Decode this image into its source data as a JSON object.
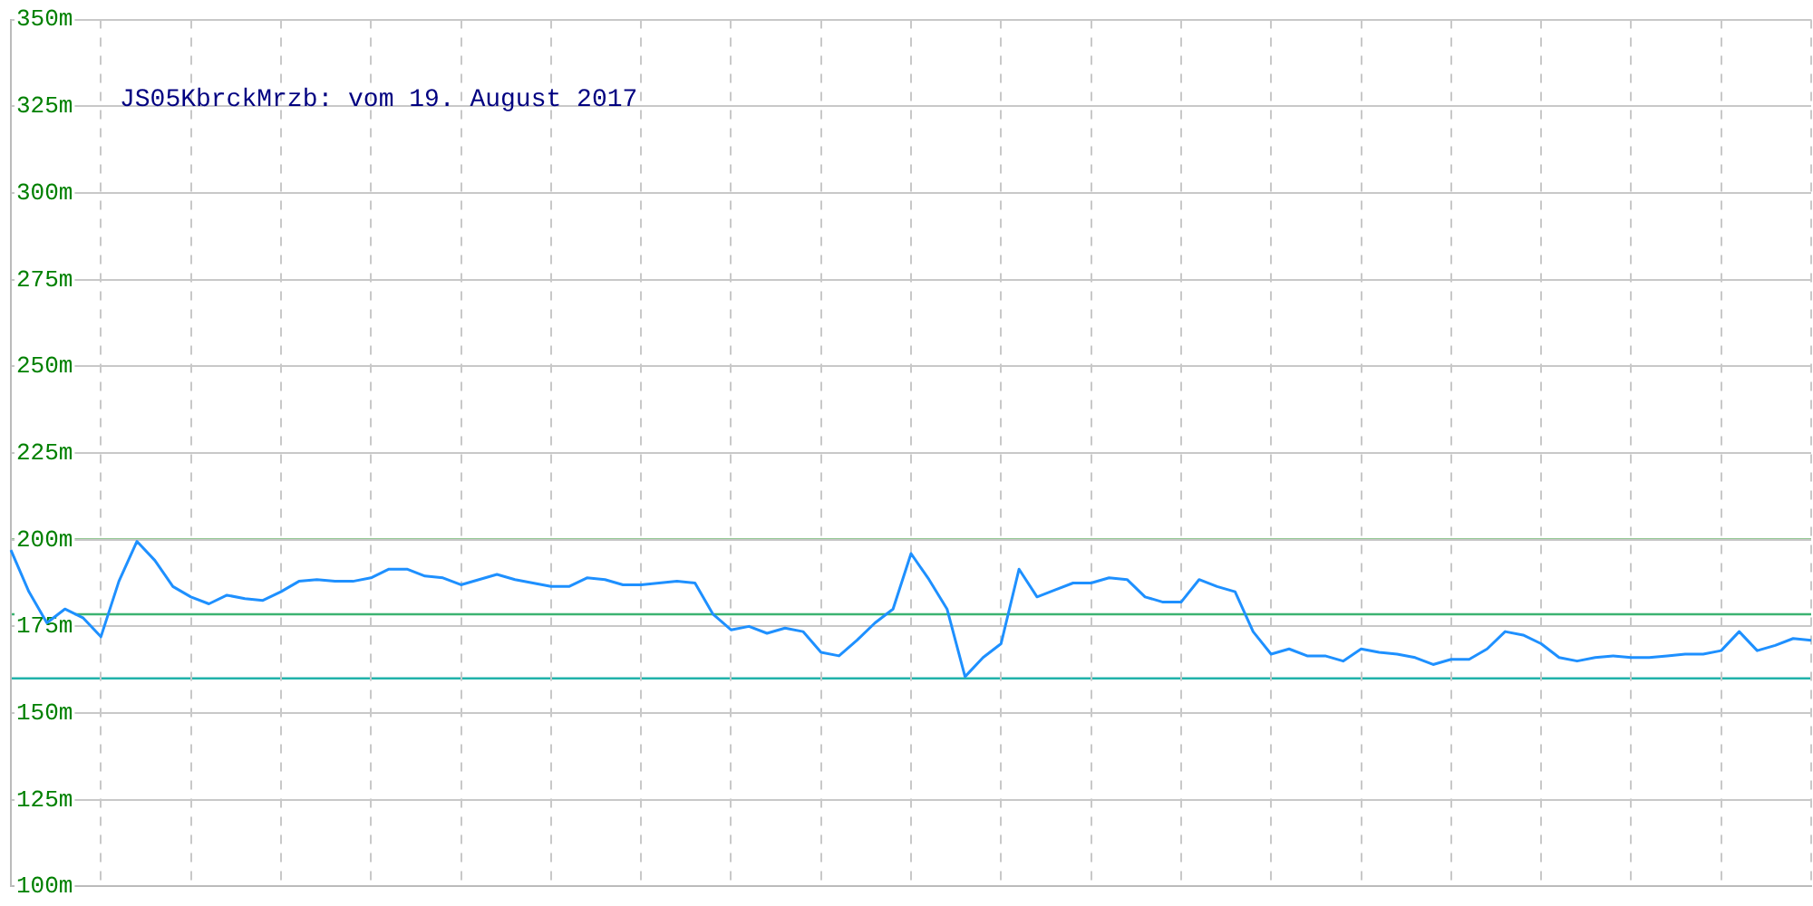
{
  "chart_data": {
    "type": "line",
    "title": "JS05KbrckMrzb: vom 19. August 2017",
    "categories": [
      null,
      null,
      null,
      null,
      null,
      null,
      null,
      null,
      null,
      null,
      null,
      null,
      null,
      null,
      null,
      null,
      null,
      null,
      null,
      null,
      null,
      null,
      null,
      null,
      null,
      null,
      null,
      null,
      null,
      null,
      null,
      null,
      null,
      null,
      null,
      null,
      null,
      null,
      null,
      null,
      null,
      null,
      null,
      null,
      null,
      null,
      null,
      null,
      null,
      null,
      null,
      null,
      null,
      null,
      null,
      null,
      null,
      null,
      null,
      null,
      null,
      null,
      null,
      null,
      null,
      null,
      null,
      null,
      null,
      null,
      null,
      null,
      null,
      null,
      null,
      null,
      null,
      null,
      null,
      null,
      null,
      null,
      null,
      null,
      null,
      null,
      null,
      null,
      null,
      null,
      null,
      null,
      null,
      null,
      null,
      null,
      null,
      null,
      null,
      null,
      null
    ],
    "series": [
      {
        "color": "#1e90ff",
        "values": [
          197,
          185,
          176,
          180,
          177.5,
          172,
          188,
          199.5,
          194,
          186.5,
          183.5,
          181.5,
          184,
          183,
          182.5,
          185,
          188,
          188.5,
          188,
          188,
          189,
          191.5,
          191.5,
          189.5,
          189,
          187,
          188.5,
          190,
          188.5,
          187.5,
          186.5,
          186.5,
          189,
          188.5,
          187,
          187,
          187.5,
          188,
          187.5,
          178.5,
          174,
          175,
          173,
          174.5,
          173.5,
          167.5,
          166.5,
          171,
          176,
          180,
          196,
          188.5,
          180,
          160.5,
          166,
          170,
          191.5,
          183.5,
          185.5,
          187.5,
          187.5,
          189,
          188.5,
          183.5,
          182,
          182,
          188.5,
          186.5,
          185,
          173.5,
          167,
          168.5,
          166.5,
          166.5,
          165,
          168.5,
          167.5,
          167,
          166,
          164,
          165.5,
          165.5,
          168.5,
          173.5,
          172.5,
          170,
          166,
          165,
          166,
          166.5,
          166,
          166,
          166.5,
          167,
          167,
          168,
          173.5,
          168,
          169.5,
          171.5,
          171
        ]
      }
    ],
    "ylim": [
      100,
      350
    ],
    "yticks": [
      {
        "value": 100,
        "label": "100m"
      },
      {
        "value": 125,
        "label": "125m"
      },
      {
        "value": 150,
        "label": "150m"
      },
      {
        "value": 175,
        "label": "175m"
      },
      {
        "value": 200,
        "label": "200m"
      },
      {
        "value": 225,
        "label": "225m"
      },
      {
        "value": 250,
        "label": "250m"
      },
      {
        "value": 275,
        "label": "275m"
      },
      {
        "value": 300,
        "label": "300m"
      },
      {
        "value": 325,
        "label": "325m"
      },
      {
        "value": 350,
        "label": "350m"
      }
    ],
    "tick_labels": "y",
    "grid": true,
    "legend": false,
    "marker": "none",
    "line_style": "solid",
    "ref_lines": [
      {
        "axis": "y",
        "value": 200,
        "color": "#228b22"
      },
      {
        "axis": "y",
        "value": 178.5,
        "color": "#3cb371"
      },
      {
        "axis": "y",
        "value": 160,
        "color": "#20b2aa"
      }
    ]
  }
}
